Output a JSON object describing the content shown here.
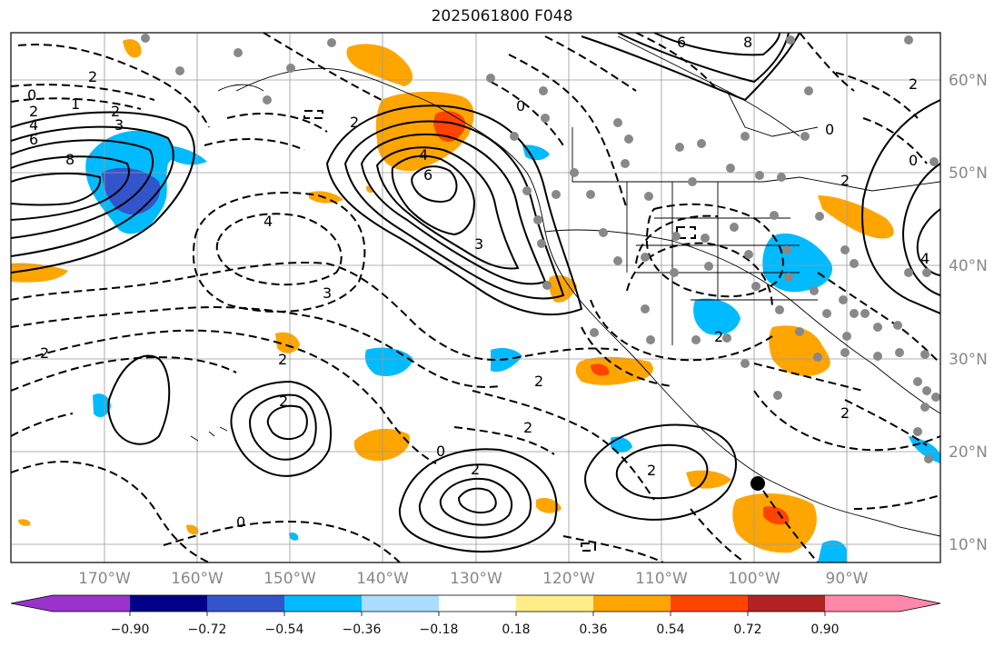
{
  "title": "2025061800 F048",
  "map": {
    "lon_ticks": [
      "170°W",
      "160°W",
      "150°W",
      "140°W",
      "130°W",
      "120°W",
      "110°W",
      "100°W",
      "90°W"
    ],
    "lat_ticks": [
      "60°N",
      "50°N",
      "40°N",
      "30°N",
      "20°N",
      "10°N"
    ],
    "contour_labels": [
      "0",
      "2",
      "4",
      "6",
      "8",
      "3",
      "1",
      "-2",
      "-4",
      "-3",
      "-6",
      "-8",
      "-1"
    ],
    "colors": {
      "solid_contour": "#000000",
      "grid": "#9a9a9a",
      "coast": "#000000"
    }
  },
  "colorbar": {
    "tick_labels": [
      "−0.90",
      "−0.72",
      "−0.54",
      "−0.36",
      "−0.18",
      "0.18",
      "0.36",
      "0.54",
      "0.72",
      "0.90"
    ],
    "colors": [
      "#9933cc",
      "#000088",
      "#3355cc",
      "#00bbff",
      "#aaddff",
      "#ffffff",
      "#ffee88",
      "#ffa500",
      "#ff4400",
      "#b22222",
      "#ff88aa"
    ]
  }
}
